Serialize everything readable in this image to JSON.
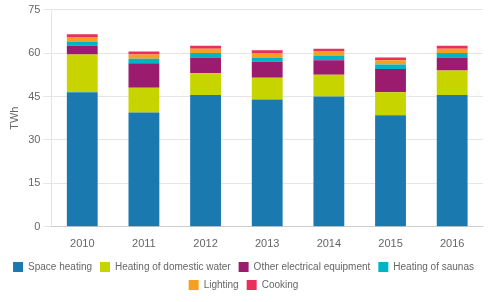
{
  "chart_data": {
    "type": "bar",
    "stacked": true,
    "categories": [
      "2010",
      "2011",
      "2012",
      "2013",
      "2014",
      "2015",
      "2016"
    ],
    "series": [
      {
        "name": "Space heating",
        "color": "#1a7aaf",
        "values": [
          46.5,
          39.5,
          45.5,
          44.0,
          45.0,
          38.5,
          45.5
        ]
      },
      {
        "name": "Heating of domestic water",
        "color": "#c8d400",
        "values": [
          13.0,
          8.5,
          7.5,
          7.5,
          7.5,
          8.0,
          8.5
        ]
      },
      {
        "name": "Other electrical equipment",
        "color": "#9b1b6e",
        "values": [
          3.0,
          8.5,
          5.5,
          5.5,
          5.0,
          8.0,
          4.5
        ]
      },
      {
        "name": "Heating of saunas",
        "color": "#00b4c8",
        "values": [
          1.5,
          1.5,
          1.5,
          1.5,
          1.5,
          1.5,
          1.5
        ]
      },
      {
        "name": "Lighting",
        "color": "#f5a020",
        "values": [
          1.5,
          1.5,
          1.5,
          1.5,
          1.5,
          1.5,
          1.5
        ]
      },
      {
        "name": "Cooking",
        "color": "#e8305a",
        "values": [
          1.0,
          1.0,
          1.0,
          1.0,
          1.0,
          1.0,
          1.0
        ]
      }
    ],
    "ylabel": "TWh",
    "ylim": [
      0,
      75
    ],
    "yticks": [
      0,
      15,
      30,
      45,
      60,
      75
    ],
    "grid": true,
    "legend": "bottom"
  }
}
